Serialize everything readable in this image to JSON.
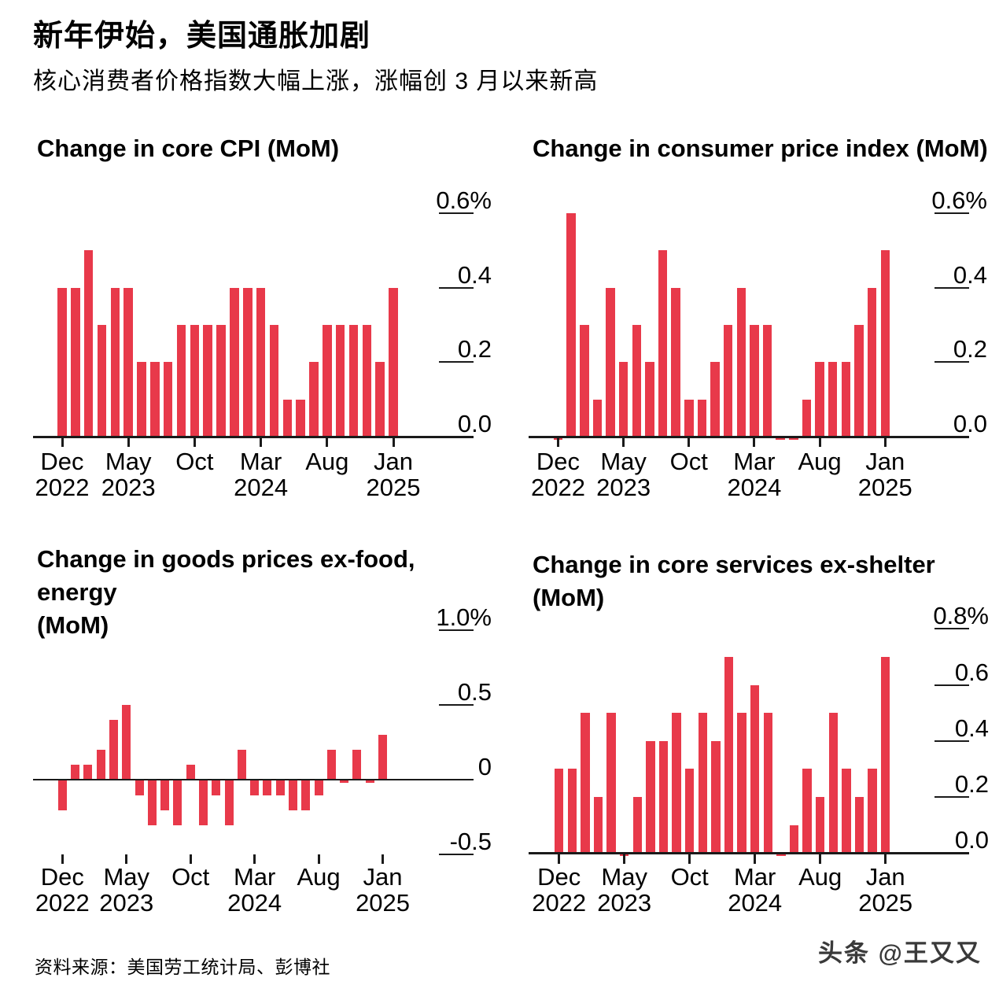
{
  "header": {
    "title": "新年伊始，美国通胀加剧",
    "subtitle": "核心消费者价格指数大幅上涨，涨幅创 3 月以来新高"
  },
  "footer": {
    "source": "资料来源：美国劳工统计局、彭博社",
    "watermark": "头条 @王又又"
  },
  "colors": {
    "bar": "#e8394a",
    "axis": "#1a1a1a",
    "text": "#000000"
  },
  "months": [
    "Dec 2022",
    "Jan 2023",
    "Feb 2023",
    "Mar 2023",
    "Apr 2023",
    "May 2023",
    "Jun 2023",
    "Jul 2023",
    "Aug 2023",
    "Sep 2023",
    "Oct 2023",
    "Nov 2023",
    "Dec 2023",
    "Jan 2024",
    "Feb 2024",
    "Mar 2024",
    "Apr 2024",
    "May 2024",
    "Jun 2024",
    "Jul 2024",
    "Aug 2024",
    "Sep 2024",
    "Oct 2024",
    "Nov 2024",
    "Dec 2024",
    "Jan 2025"
  ],
  "x_ticks": [
    {
      "month_index": 0,
      "line1": "Dec",
      "line2": "2022"
    },
    {
      "month_index": 5,
      "line1": "May",
      "line2": "2023"
    },
    {
      "month_index": 10,
      "line1": "Oct",
      "line2": ""
    },
    {
      "month_index": 15,
      "line1": "Mar",
      "line2": "2024"
    },
    {
      "month_index": 20,
      "line1": "Aug",
      "line2": ""
    },
    {
      "month_index": 25,
      "line1": "Jan",
      "line2": "2025"
    }
  ],
  "chart_data": [
    {
      "id": "core-cpi",
      "type": "bar",
      "title": "Change in core CPI (MoM)",
      "title_lines": [
        "Change in core CPI (MoM)"
      ],
      "unit": "%",
      "ylim": [
        0,
        0.65
      ],
      "grid": false,
      "legend": "none",
      "y_ticks": [
        {
          "value": 0.6,
          "label": "0.6%"
        },
        {
          "value": 0.4,
          "label": "0.4"
        },
        {
          "value": 0.2,
          "label": "0.2"
        },
        {
          "value": 0.0,
          "label": "0.0"
        }
      ],
      "values": [
        0.4,
        0.4,
        0.5,
        0.3,
        0.4,
        0.4,
        0.2,
        0.2,
        0.2,
        0.3,
        0.3,
        0.3,
        0.3,
        0.4,
        0.4,
        0.4,
        0.3,
        0.1,
        0.1,
        0.2,
        0.3,
        0.3,
        0.3,
        0.3,
        0.2,
        0.4
      ]
    },
    {
      "id": "consumer-price-index",
      "type": "bar",
      "title": "Change in consumer price index (MoM)",
      "title_lines": [
        "Change in consumer price index (MoM)"
      ],
      "unit": "%",
      "ylim": [
        -0.05,
        0.65
      ],
      "grid": false,
      "legend": "none",
      "y_ticks": [
        {
          "value": 0.6,
          "label": "0.6%"
        },
        {
          "value": 0.4,
          "label": "0.4"
        },
        {
          "value": 0.2,
          "label": "0.2"
        },
        {
          "value": 0.0,
          "label": "0.0"
        }
      ],
      "values": [
        -0.005,
        0.6,
        0.3,
        0.1,
        0.4,
        0.2,
        0.3,
        0.2,
        0.5,
        0.4,
        0.1,
        0.1,
        0.2,
        0.3,
        0.4,
        0.3,
        0.3,
        -0.005,
        -0.005,
        0.1,
        0.2,
        0.2,
        0.2,
        0.3,
        0.4,
        0.5
      ]
    },
    {
      "id": "goods-prices-ex-food-energy",
      "type": "bar",
      "title": "Change in goods prices ex-food, energy (MoM)",
      "title_lines": [
        "Change in goods prices ex-food, energy",
        "(MoM)"
      ],
      "unit": "%",
      "ylim": [
        -0.6,
        1.0
      ],
      "grid": false,
      "legend": "none",
      "y_ticks": [
        {
          "value": 1.0,
          "label": "1.0%"
        },
        {
          "value": 0.5,
          "label": "0.5"
        },
        {
          "value": 0.0,
          "label": "0"
        },
        {
          "value": -0.5,
          "label": "-0.5"
        }
      ],
      "values": [
        -0.2,
        0.1,
        0.1,
        0.2,
        0.4,
        0.5,
        -0.1,
        -0.3,
        -0.2,
        -0.3,
        0.1,
        -0.3,
        -0.1,
        -0.3,
        0.2,
        -0.1,
        -0.1,
        -0.1,
        -0.2,
        -0.2,
        -0.1,
        0.2,
        -0.02,
        0.2,
        -0.02,
        0.3
      ]
    },
    {
      "id": "core-services-ex-shelter",
      "type": "bar",
      "title": "Change in core services ex-shelter (MoM)",
      "title_lines": [
        "Change in core services ex-shelter (MoM)"
      ],
      "unit": "%",
      "ylim": [
        -0.05,
        0.8
      ],
      "grid": false,
      "legend": "none",
      "y_ticks": [
        {
          "value": 0.8,
          "label": "0.8%"
        },
        {
          "value": 0.6,
          "label": "0.6"
        },
        {
          "value": 0.4,
          "label": "0.4"
        },
        {
          "value": 0.2,
          "label": "0.2"
        },
        {
          "value": 0.0,
          "label": "0.0"
        }
      ],
      "values": [
        0.3,
        0.3,
        0.5,
        0.2,
        0.5,
        -0.005,
        0.2,
        0.4,
        0.4,
        0.5,
        0.3,
        0.5,
        0.4,
        0.7,
        0.5,
        0.6,
        0.5,
        -0.005,
        0.1,
        0.3,
        0.2,
        0.5,
        0.3,
        0.2,
        0.3,
        0.7
      ]
    }
  ]
}
